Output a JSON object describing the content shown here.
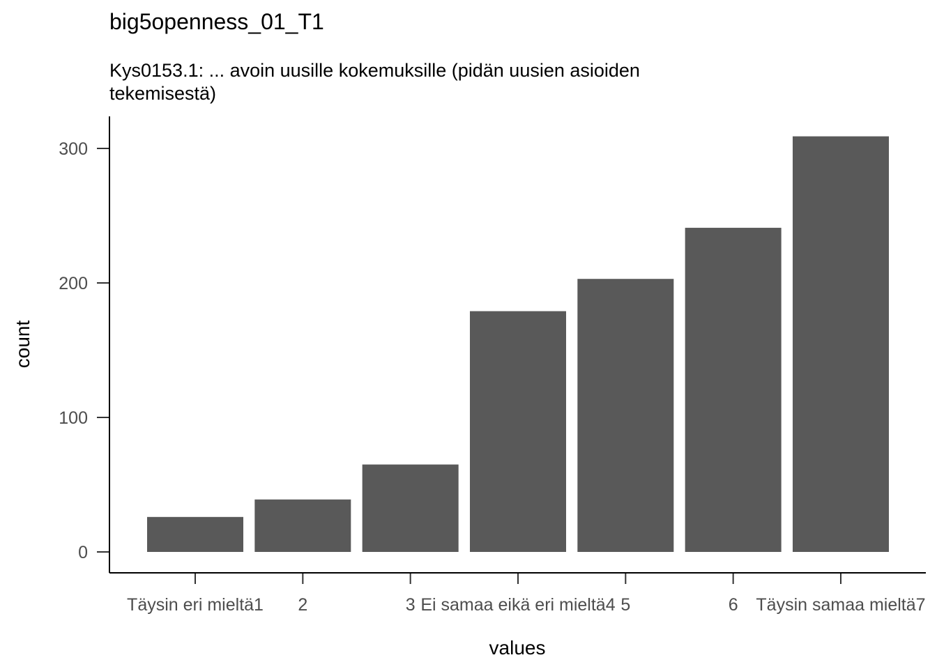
{
  "chart_data": {
    "type": "bar",
    "title": "big5openness_01_T1",
    "subtitle_lines": [
      "Kys0153.1: ... avoin uusille kokemuksille (pidän uusien asioiden",
      "tekemisestä)"
    ],
    "xlabel": "values",
    "ylabel": "count",
    "categories": [
      "Täysin eri mieltä1",
      "2",
      "3",
      "Ei samaa eikä eri mieltä4",
      "5",
      "6",
      "Täysin samaa mieltä7"
    ],
    "values": [
      26,
      39,
      65,
      179,
      203,
      241,
      309
    ],
    "ylim": [
      0,
      320
    ],
    "yticks": [
      0,
      100,
      200,
      300
    ],
    "bar_color": "#595959",
    "grid": false,
    "legend": "none"
  }
}
